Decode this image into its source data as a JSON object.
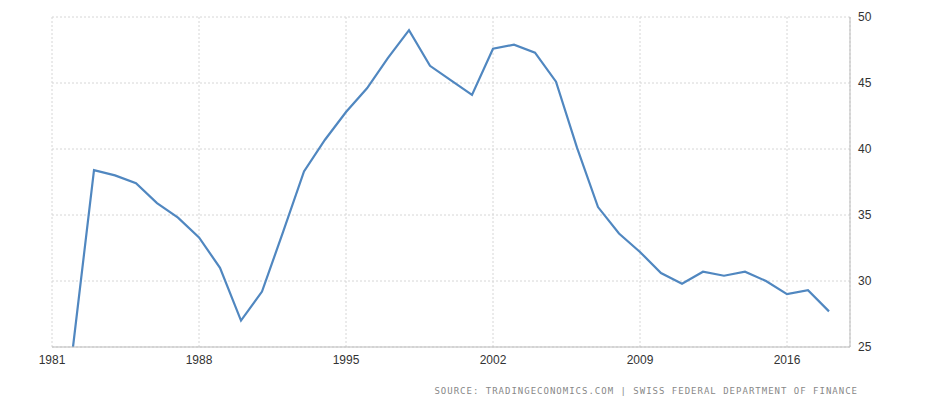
{
  "chart_data": {
    "type": "line",
    "source": "SOURCE: TRADINGECONOMICS.COM | SWISS FEDERAL DEPARTMENT OF FINANCE",
    "x": [
      1982,
      1983,
      1984,
      1985,
      1986,
      1987,
      1988,
      1989,
      1990,
      1991,
      1992,
      1993,
      1994,
      1995,
      1996,
      1997,
      1998,
      1999,
      2000,
      2001,
      2002,
      2003,
      2004,
      2005,
      2006,
      2007,
      2008,
      2009,
      2010,
      2011,
      2012,
      2013,
      2014,
      2015,
      2016,
      2017,
      2018
    ],
    "values": [
      25,
      38.4,
      38.0,
      37.4,
      35.9,
      34.8,
      33.3,
      31.0,
      27.0,
      29.2,
      33.7,
      38.3,
      40.7,
      42.8,
      44.6,
      46.9,
      49.0,
      46.3,
      45.2,
      44.1,
      47.6,
      47.9,
      47.3,
      45.1,
      40.1,
      35.6,
      33.6,
      32.2,
      30.6,
      29.8,
      30.7,
      30.4,
      30.7,
      30.0,
      29.0,
      29.3,
      27.7
    ],
    "color": "#5087c0",
    "xlim": [
      1981,
      2019
    ],
    "xticks": [
      1981,
      1988,
      1995,
      2002,
      2009,
      2016
    ],
    "ylim": [
      25,
      50
    ],
    "yticks": [
      25,
      30,
      35,
      40,
      45,
      50
    ],
    "grid": true
  }
}
